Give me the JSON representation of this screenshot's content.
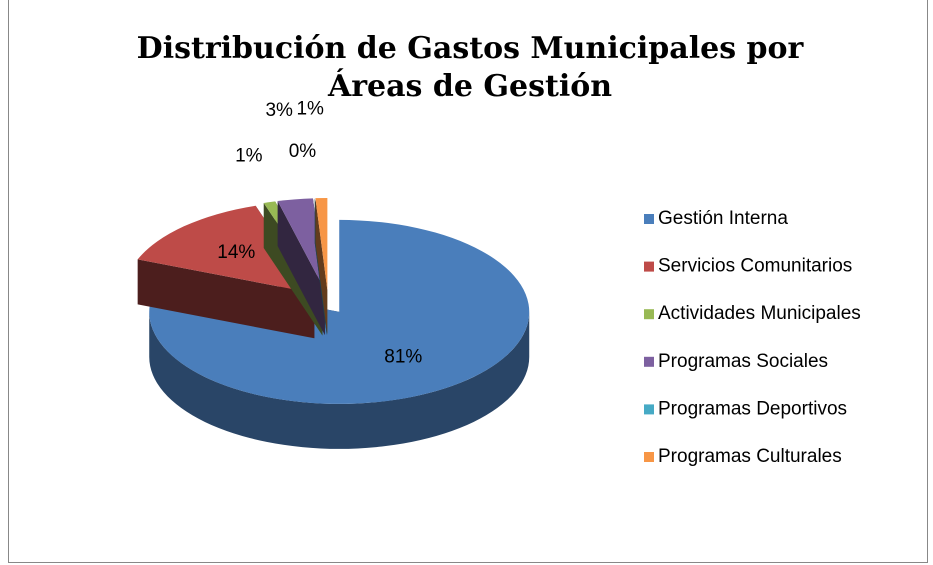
{
  "chart_data": {
    "type": "pie",
    "title": "Distribución de Gastos Municipales por Áreas de Gestión",
    "categories": [
      "Gestión Interna",
      "Servicios Comunitarios",
      "Actividades Municipales",
      "Programas Sociales",
      "Programas Deportivos",
      "Programas Culturales"
    ],
    "values": [
      81,
      14,
      1,
      3,
      0,
      1
    ],
    "value_labels": [
      "81%",
      "14%",
      "1%",
      "3%",
      "0%",
      "1%"
    ],
    "colors": [
      "#4a7ebb",
      "#be4b48",
      "#98b954",
      "#7d60a0",
      "#46aac5",
      "#f79646"
    ],
    "legend": "right"
  }
}
